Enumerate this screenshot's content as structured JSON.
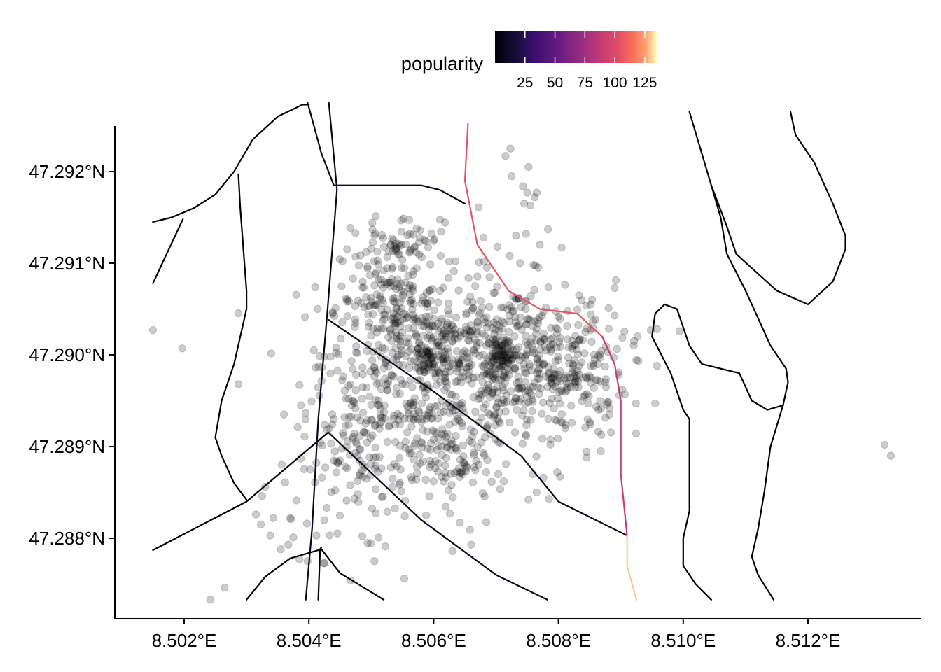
{
  "chart_data": {
    "type": "scatter",
    "title": "",
    "xlabel": "",
    "ylabel": "",
    "xlim": [
      8.5009,
      8.5138
    ],
    "ylim": [
      47.2871,
      47.2925
    ],
    "x_ticks": [
      {
        "value": 8.502,
        "label": "8.502°E"
      },
      {
        "value": 8.504,
        "label": "8.504°E"
      },
      {
        "value": 8.506,
        "label": "8.506°E"
      },
      {
        "value": 8.508,
        "label": "8.508°E"
      },
      {
        "value": 8.51,
        "label": "8.510°E"
      },
      {
        "value": 8.512,
        "label": "8.512°E"
      }
    ],
    "y_ticks": [
      {
        "value": 47.292,
        "label": "47.292°N"
      },
      {
        "value": 47.291,
        "label": "47.291°N"
      },
      {
        "value": 47.29,
        "label": "47.290°N"
      },
      {
        "value": 47.289,
        "label": "47.289°N"
      },
      {
        "value": 47.288,
        "label": "47.288°N"
      }
    ],
    "grid": false,
    "legend": {
      "title": "popularity",
      "placement": "top",
      "palette": "magma",
      "min": 0,
      "max": 135,
      "breaks": [
        {
          "value": 25,
          "label": "25"
        },
        {
          "value": 50,
          "label": "50"
        },
        {
          "value": 75,
          "label": "75"
        },
        {
          "value": 100,
          "label": "100"
        },
        {
          "value": 125,
          "label": "125"
        }
      ]
    },
    "point_style": {
      "color": "#000000",
      "opacity": 0.2
    },
    "points_outliers": [
      [
        8.5015,
        47.29027
      ],
      [
        8.50197,
        47.29007
      ],
      [
        8.50287,
        47.28968
      ],
      [
        8.50242,
        47.28733
      ],
      [
        8.50265,
        47.28746
      ],
      [
        8.50315,
        47.28826
      ],
      [
        8.50325,
        47.28846
      ],
      [
        8.5033,
        47.28856
      ],
      [
        8.50323,
        47.28815
      ],
      [
        8.50338,
        47.28803
      ],
      [
        8.50343,
        47.28822
      ],
      [
        8.50355,
        47.28788
      ],
      [
        8.50367,
        47.28793
      ],
      [
        8.50375,
        47.28801
      ],
      [
        8.5037,
        47.28822
      ],
      [
        8.50397,
        47.28816
      ],
      [
        8.50385,
        47.28777
      ],
      [
        8.50398,
        47.28775
      ],
      [
        8.50412,
        47.28803
      ],
      [
        8.50425,
        47.28773
      ],
      [
        8.50387,
        47.28887
      ],
      [
        8.50402,
        47.28875
      ],
      [
        8.50362,
        47.28861
      ],
      [
        8.50385,
        47.28967
      ],
      [
        8.50408,
        47.29005
      ],
      [
        8.50425,
        47.28998
      ],
      [
        8.50438,
        47.29045
      ],
      [
        8.50435,
        47.28998
      ],
      [
        8.50382,
        47.28921
      ],
      [
        8.50387,
        47.28945
      ],
      [
        8.50393,
        47.28911
      ],
      [
        8.5036,
        47.28935
      ],
      [
        8.50467,
        47.28754
      ],
      [
        8.50505,
        47.28775
      ],
      [
        8.50553,
        47.28756
      ],
      [
        8.5063,
        47.28786
      ],
      [
        8.50672,
        47.29161
      ],
      [
        8.50715,
        47.29217
      ],
      [
        8.50723,
        47.29225
      ],
      [
        8.50752,
        47.29205
      ],
      [
        8.50725,
        47.29195
      ],
      [
        8.50743,
        47.29184
      ],
      [
        8.5075,
        47.29177
      ],
      [
        8.50765,
        47.29177
      ],
      [
        8.50762,
        47.29172
      ],
      [
        8.50755,
        47.29163
      ],
      [
        8.50745,
        47.29165
      ],
      [
        8.5068,
        47.29128
      ],
      [
        8.50702,
        47.29118
      ],
      [
        8.50732,
        47.2913
      ],
      [
        8.50722,
        47.29108
      ],
      [
        8.5076,
        47.29098
      ],
      [
        8.50748,
        47.29132
      ],
      [
        8.50783,
        47.29137
      ],
      [
        8.5077,
        47.2912
      ],
      [
        8.50805,
        47.29117
      ],
      [
        8.50833,
        47.29065
      ],
      [
        8.5089,
        47.29073
      ],
      [
        8.50948,
        47.29027
      ],
      [
        8.50958,
        47.29028
      ],
      [
        8.50958,
        47.28988
      ],
      [
        8.50955,
        47.28947
      ],
      [
        8.51323,
        47.28902
      ],
      [
        8.51333,
        47.2889
      ],
      [
        8.50845,
        47.28888
      ],
      [
        8.50868,
        47.28895
      ],
      [
        8.50798,
        47.28872
      ],
      [
        8.50776,
        47.28866
      ],
      [
        8.50765,
        47.2885
      ],
      [
        8.50785,
        47.28843
      ],
      [
        8.50752,
        47.28842
      ],
      [
        8.5066,
        47.28793
      ],
      [
        8.50642,
        47.28817
      ]
    ],
    "clusters": [
      {
        "cx": 8.506,
        "cy": 47.2899,
        "sx": 0.0009,
        "sy": 0.00048,
        "n": 380
      },
      {
        "cx": 8.5071,
        "cy": 47.2899,
        "sx": 0.0009,
        "sy": 0.00045,
        "n": 380
      },
      {
        "cx": 8.5081,
        "cy": 47.2898,
        "sx": 0.0005,
        "sy": 0.00035,
        "n": 160
      },
      {
        "cx": 8.5053,
        "cy": 47.2906,
        "sx": 0.0004,
        "sy": 0.00035,
        "n": 170
      },
      {
        "cx": 8.505,
        "cy": 47.2889,
        "sx": 0.0006,
        "sy": 0.0004,
        "n": 160
      },
      {
        "cx": 8.5064,
        "cy": 47.2888,
        "sx": 0.0004,
        "sy": 0.00025,
        "n": 80
      },
      {
        "cx": 8.5059,
        "cy": 47.28995,
        "sx": 0.00012,
        "sy": 0.0001,
        "n": 45
      },
      {
        "cx": 8.5071,
        "cy": 47.29,
        "sx": 0.00012,
        "sy": 0.0001,
        "n": 45
      },
      {
        "cx": 8.50555,
        "cy": 47.2913,
        "sx": 0.0003,
        "sy": 0.00012,
        "n": 40
      }
    ],
    "roads": [
      {
        "popularity": 0,
        "coords": [
          [
            8.5015,
            47.29145
          ],
          [
            8.5018,
            47.2915
          ],
          [
            8.50215,
            47.2916
          ],
          [
            8.5025,
            47.29175
          ],
          [
            8.5028,
            47.292
          ],
          [
            8.5031,
            47.29235
          ],
          [
            8.5035,
            47.2926
          ],
          [
            8.5039,
            47.29273
          ],
          [
            8.504,
            47.29273
          ]
        ]
      },
      {
        "popularity": 0,
        "coords": [
          [
            8.5015,
            47.29078
          ],
          [
            8.50198,
            47.29148
          ]
        ]
      },
      {
        "popularity": 0,
        "coords": [
          [
            8.50287,
            47.29197
          ],
          [
            8.5029,
            47.2916
          ],
          [
            8.503,
            47.2907
          ],
          [
            8.503,
            47.2905
          ],
          [
            8.5028,
            47.2899
          ],
          [
            8.5026,
            47.2895
          ],
          [
            8.5025,
            47.2891
          ],
          [
            8.5026,
            47.2889
          ],
          [
            8.5028,
            47.2886
          ],
          [
            8.503,
            47.28842
          ]
        ]
      },
      {
        "popularity": 0,
        "coords": [
          [
            8.5015,
            47.28787
          ],
          [
            8.503,
            47.2884
          ],
          [
            8.5043,
            47.28915
          ]
        ]
      },
      {
        "popularity": 0,
        "coords": [
          [
            8.503,
            47.28733
          ],
          [
            8.5033,
            47.28758
          ],
          [
            8.5037,
            47.28778
          ],
          [
            8.5042,
            47.28788
          ],
          [
            8.5045,
            47.28762
          ],
          [
            8.5052,
            47.28733
          ]
        ]
      },
      {
        "popularity": 0,
        "coords": [
          [
            8.50415,
            47.28733
          ],
          [
            8.50418,
            47.28788
          ],
          [
            8.5042,
            47.2879
          ]
        ]
      },
      {
        "popularity": 8,
        "coords": [
          [
            8.50398,
            47.29275
          ],
          [
            8.5042,
            47.2922
          ],
          [
            8.5044,
            47.29185
          ],
          [
            8.5049,
            47.29185
          ],
          [
            8.5058,
            47.29185
          ],
          [
            8.5061,
            47.2918
          ],
          [
            8.5065,
            47.29165
          ]
        ]
      },
      {
        "popularity": 8,
        "coords": [
          [
            8.50432,
            47.29275
          ],
          [
            8.50445,
            47.2918
          ],
          [
            8.5043,
            47.2905
          ],
          [
            8.50415,
            47.2893
          ],
          [
            8.50405,
            47.2881
          ],
          [
            8.50395,
            47.28733
          ]
        ]
      },
      {
        "popularity": 8,
        "coords": [
          [
            8.50432,
            47.29038
          ],
          [
            8.506,
            47.2896
          ],
          [
            8.5074,
            47.2889
          ],
          [
            8.508,
            47.2884
          ],
          [
            8.5091,
            47.28803
          ]
        ]
      },
      {
        "popularity": 8,
        "coords": [
          [
            8.50432,
            47.28915
          ],
          [
            8.5058,
            47.2882
          ],
          [
            8.507,
            47.2876
          ],
          [
            8.50782,
            47.28733
          ]
        ]
      },
      {
        "popularity": 4,
        "coords": [
          [
            8.5101,
            47.29265
          ],
          [
            8.51045,
            47.29185
          ],
          [
            8.5107,
            47.2914
          ],
          [
            8.51085,
            47.2911
          ],
          [
            8.5115,
            47.2907
          ],
          [
            8.512,
            47.29055
          ],
          [
            8.5124,
            47.2908
          ],
          [
            8.5126,
            47.29115
          ],
          [
            8.5126,
            47.2913
          ],
          [
            8.5124,
            47.29165
          ],
          [
            8.5121,
            47.2921
          ],
          [
            8.5118,
            47.2924
          ],
          [
            8.51172,
            47.29265
          ]
        ]
      },
      {
        "popularity": 2,
        "coords": [
          [
            8.51045,
            47.29185
          ],
          [
            8.5106,
            47.2915
          ],
          [
            8.5107,
            47.2911
          ],
          [
            8.511,
            47.2907
          ],
          [
            8.5112,
            47.2904
          ],
          [
            8.5114,
            47.2901
          ],
          [
            8.51165,
            47.28985
          ],
          [
            8.51168,
            47.2897
          ],
          [
            8.5116,
            47.28945
          ]
        ]
      },
      {
        "popularity": 0,
        "coords": [
          [
            8.5116,
            47.28945
          ],
          [
            8.51135,
            47.2894
          ],
          [
            8.5111,
            47.2895
          ],
          [
            8.5109,
            47.2898
          ],
          [
            8.5106,
            47.28985
          ],
          [
            8.5103,
            47.2899
          ],
          [
            8.5101,
            47.2901
          ],
          [
            8.5099,
            47.2905
          ],
          [
            8.5097,
            47.29055
          ],
          [
            8.50955,
            47.29045
          ],
          [
            8.5095,
            47.2902
          ],
          [
            8.5098,
            47.2898
          ],
          [
            8.51,
            47.2894
          ],
          [
            8.5101,
            47.2893
          ],
          [
            8.5101,
            47.2883
          ],
          [
            8.51,
            47.288
          ],
          [
            8.51,
            47.2877
          ],
          [
            8.5102,
            47.2875
          ],
          [
            8.51045,
            47.28733
          ]
        ]
      },
      {
        "popularity": 0,
        "coords": [
          [
            8.5116,
            47.28945
          ],
          [
            8.5114,
            47.289
          ],
          [
            8.5113,
            47.2885
          ],
          [
            8.5112,
            47.2881
          ],
          [
            8.5111,
            47.2878
          ],
          [
            8.5112,
            47.2876
          ],
          [
            8.51145,
            47.28733
          ]
        ]
      },
      {
        "popularity": 105,
        "coords": [
          [
            8.50655,
            47.29252
          ],
          [
            8.5065,
            47.2919
          ],
          [
            8.5067,
            47.2912
          ],
          [
            8.5072,
            47.2907
          ],
          [
            8.5077,
            47.2905
          ],
          [
            8.5083,
            47.29045
          ],
          [
            8.5087,
            47.2902
          ]
        ]
      },
      {
        "popularity": 90,
        "coords": [
          [
            8.5087,
            47.2902
          ],
          [
            8.5089,
            47.2899
          ],
          [
            8.509,
            47.2895
          ],
          [
            8.509,
            47.2891
          ],
          [
            8.509,
            47.2887
          ],
          [
            8.5091,
            47.28803
          ]
        ]
      },
      {
        "popularity": 130,
        "coords": [
          [
            8.5091,
            47.28803
          ],
          [
            8.5091,
            47.2877
          ],
          [
            8.50925,
            47.28733
          ]
        ]
      }
    ]
  }
}
